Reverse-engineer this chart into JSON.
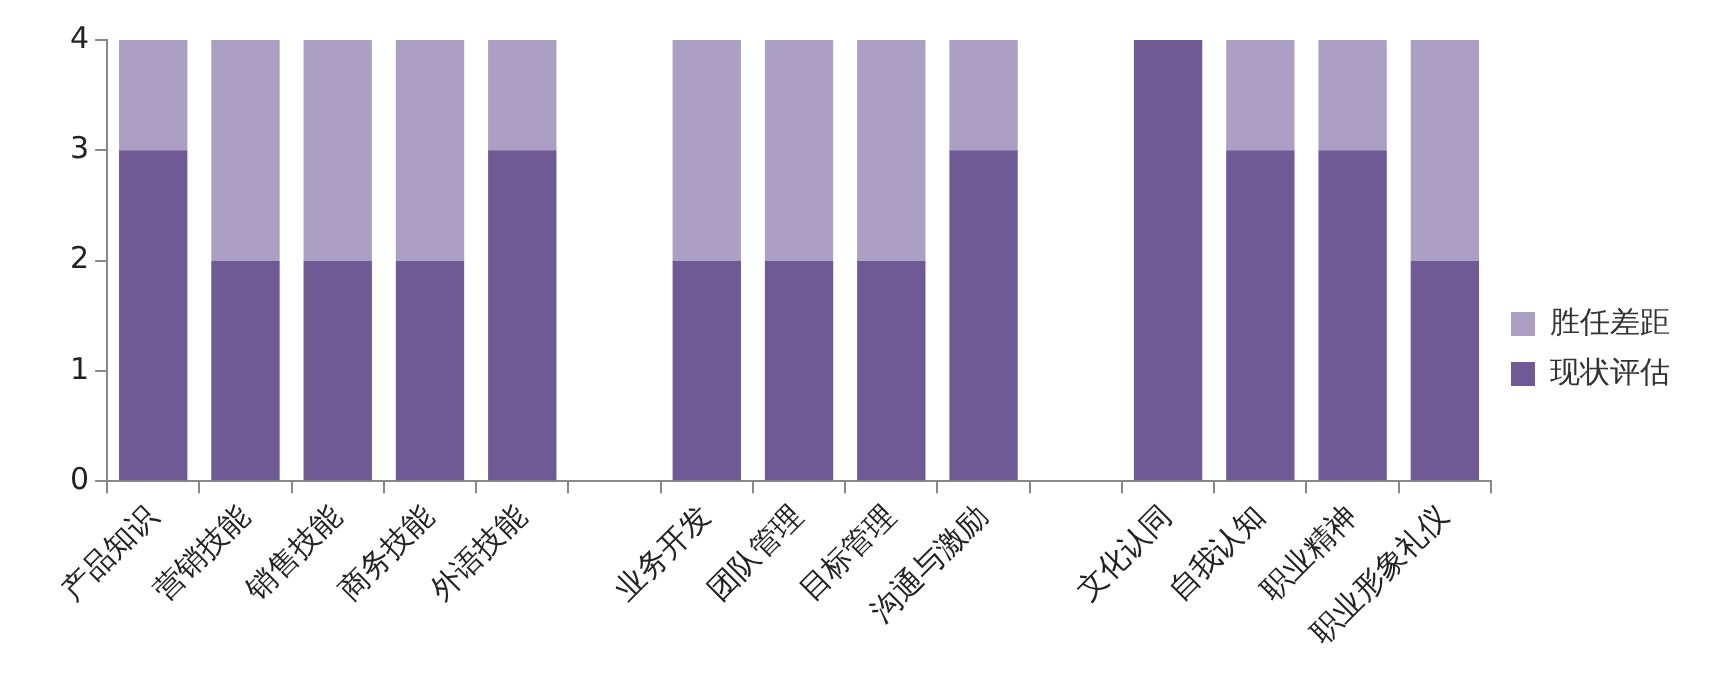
{
  "chart_data": {
    "type": "bar",
    "stacked": true,
    "categories": [
      "产品知识",
      "营销技能",
      "销售技能",
      "商务技能",
      "外语技能",
      null,
      "业务开发",
      "团队管理",
      "目标管理",
      "沟通与激励",
      null,
      "文化认同",
      "自我认知",
      "职业精神",
      "职业形象礼仪"
    ],
    "series": [
      {
        "name": "现状评估",
        "color": "#6f5a96",
        "values": [
          3,
          2,
          2,
          2,
          3,
          null,
          2,
          2,
          2,
          3,
          null,
          4,
          3,
          3,
          2
        ]
      },
      {
        "name": "胜任差距",
        "color": "#ab9fc3",
        "values": [
          1,
          2,
          2,
          2,
          1,
          null,
          2,
          2,
          2,
          1,
          null,
          0,
          1,
          1,
          2
        ]
      }
    ],
    "ylim": [
      0,
      4
    ],
    "yticks": [
      0,
      1,
      2,
      3,
      4
    ],
    "grid": false,
    "legend": "right"
  }
}
